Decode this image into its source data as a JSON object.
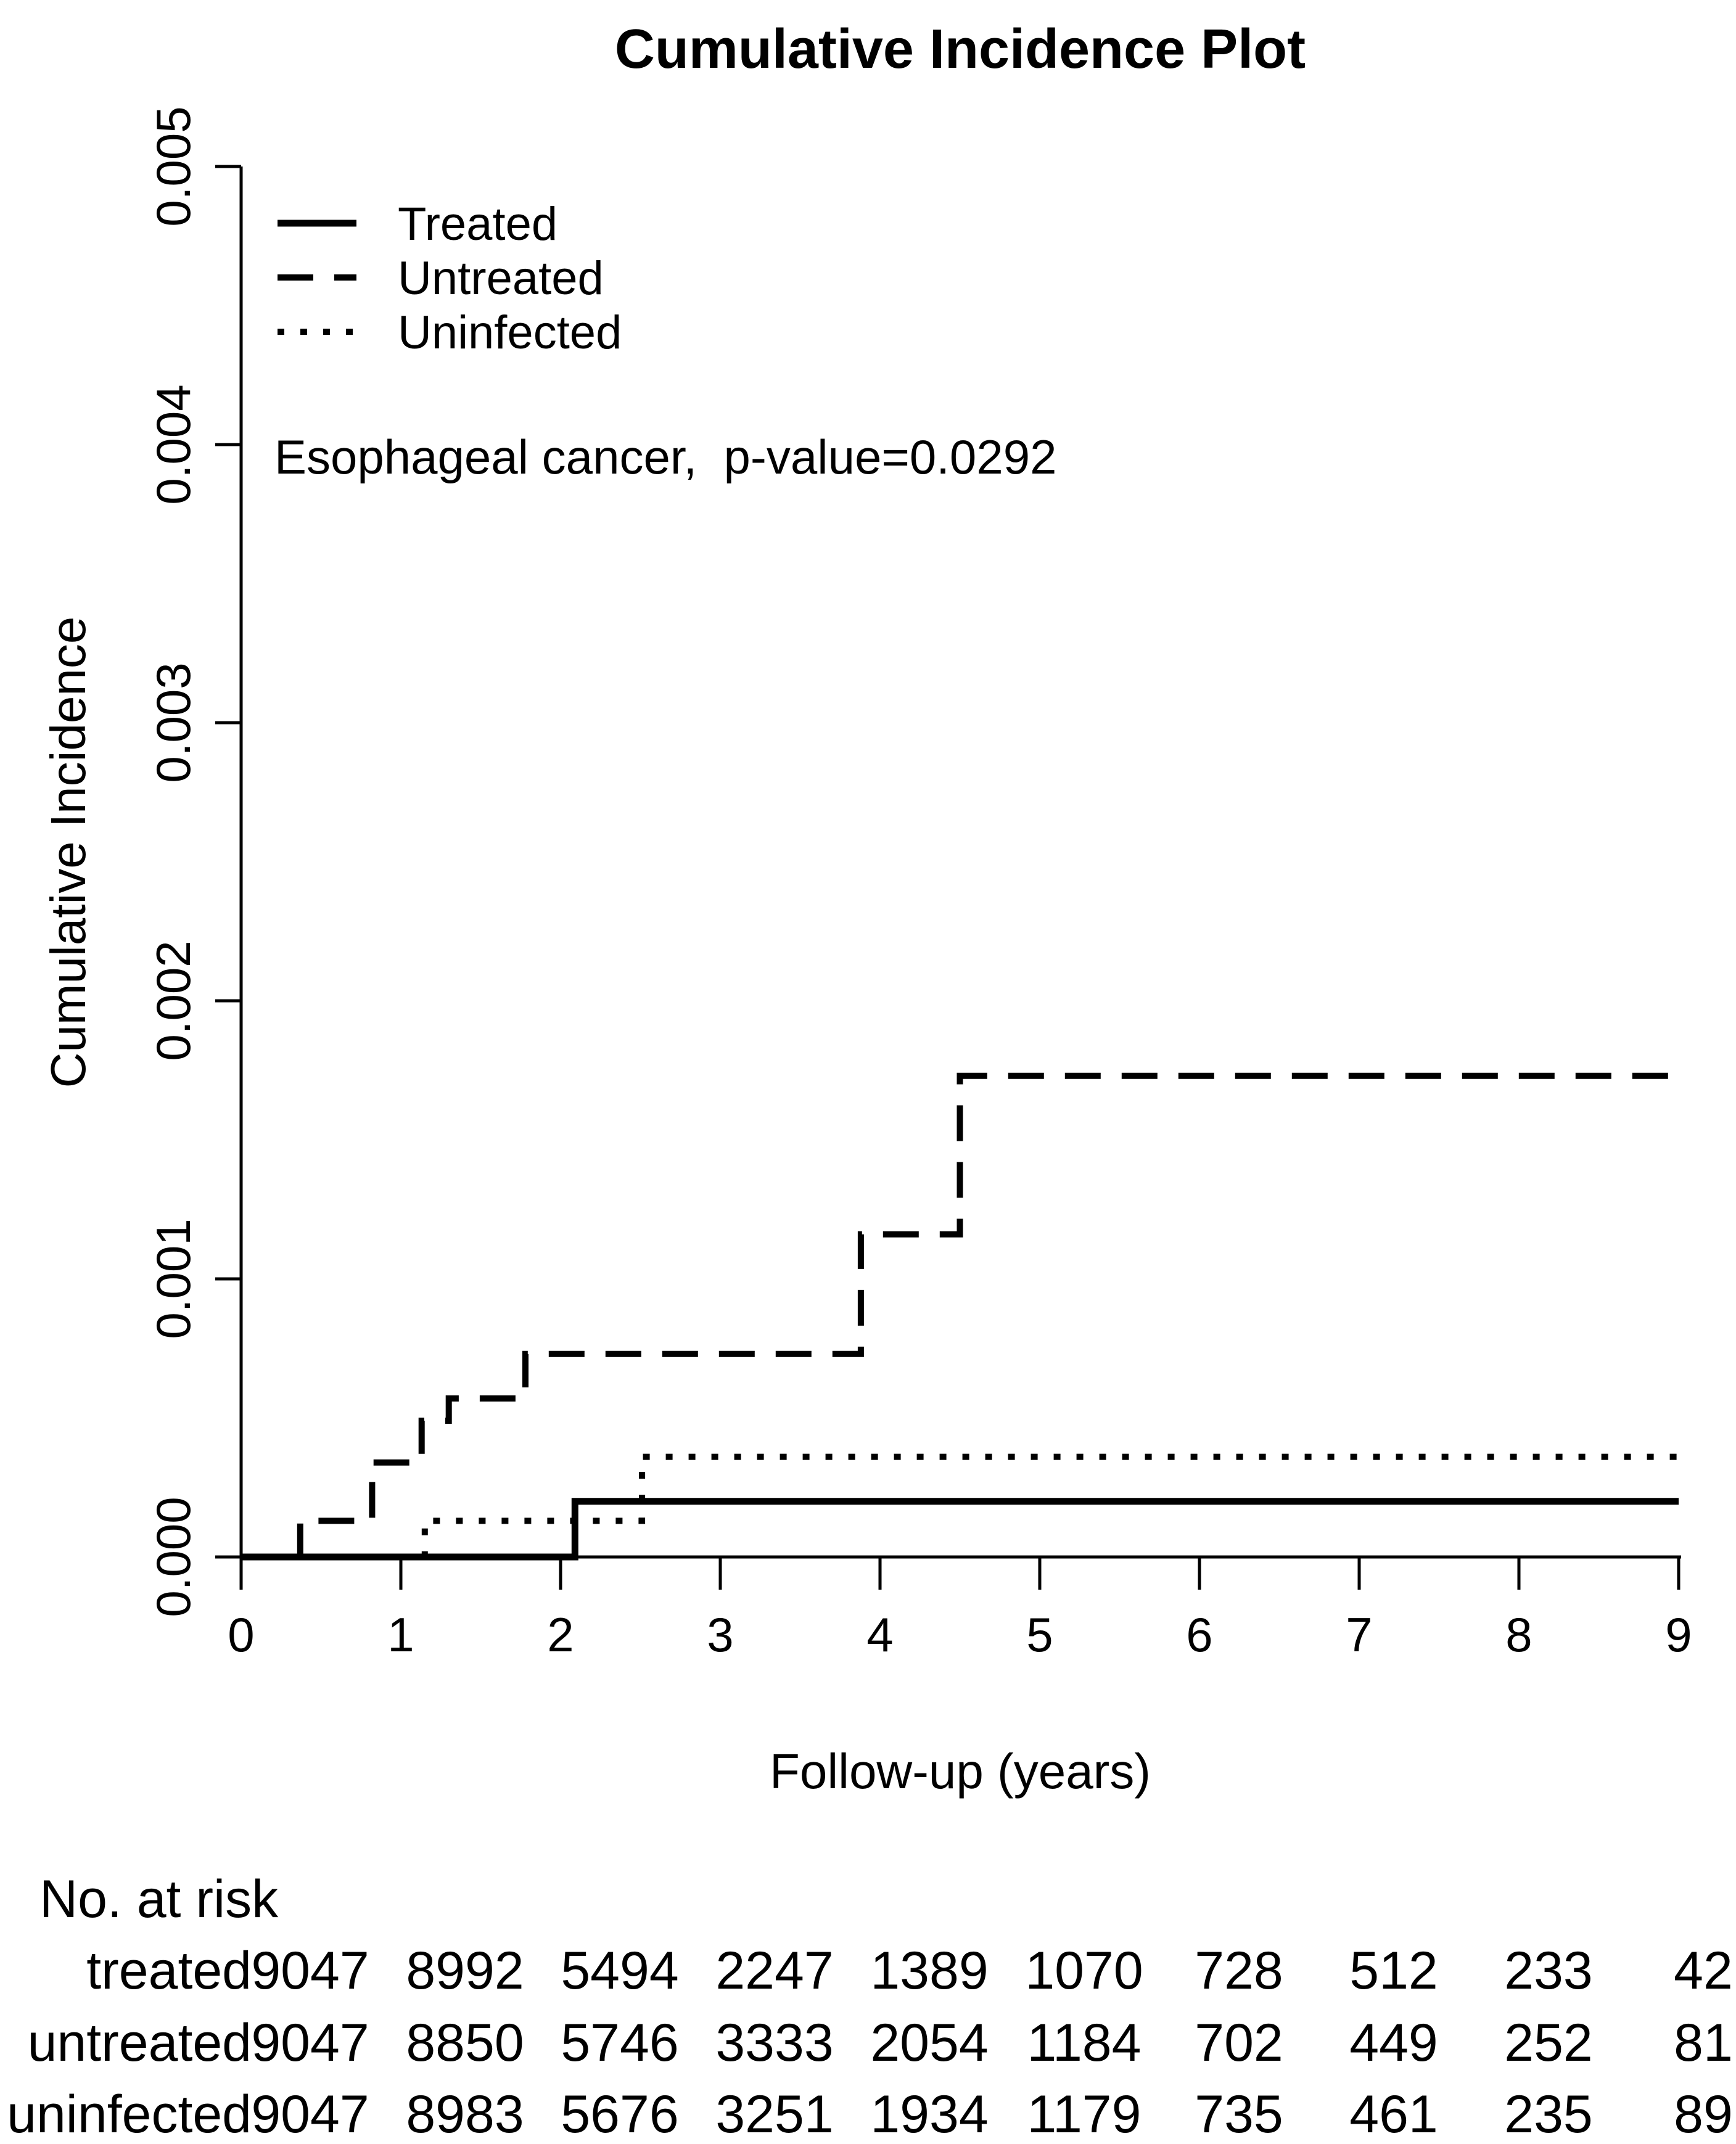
{
  "page": {
    "background": "#ffffff",
    "text_color": "#000000",
    "line_color": "#000000"
  },
  "chart_data": {
    "type": "line",
    "step": true,
    "title": "Cumulative Incidence Plot",
    "xlabel": "Follow-up (years)",
    "ylabel": "Cumulative Incidence",
    "xlim": [
      0,
      9
    ],
    "ylim": [
      0,
      0.005
    ],
    "x_ticks": [
      "0",
      "1",
      "2",
      "3",
      "4",
      "5",
      "6",
      "7",
      "8",
      "9"
    ],
    "y_ticks": [
      "0.000",
      "0.001",
      "0.002",
      "0.003",
      "0.004",
      "0.005"
    ],
    "grid": false,
    "legend_position": "upper-left",
    "annotation": "Esophageal cancer,  p-value=0.0292",
    "series": [
      {
        "name": "Treated",
        "linestyle": "solid",
        "points": [
          [
            0,
            0
          ],
          [
            2.09,
            0
          ],
          [
            2.09,
            0.0002
          ],
          [
            9,
            0.0002
          ]
        ]
      },
      {
        "name": "Untreated",
        "linestyle": "dashed",
        "points": [
          [
            0,
            0
          ],
          [
            0.37,
            0
          ],
          [
            0.37,
            0.00013
          ],
          [
            0.82,
            0.00013
          ],
          [
            0.82,
            0.00034
          ],
          [
            1.13,
            0.00034
          ],
          [
            1.13,
            0.00049
          ],
          [
            1.3,
            0.00049
          ],
          [
            1.3,
            0.00057
          ],
          [
            1.78,
            0.00057
          ],
          [
            1.78,
            0.00073
          ],
          [
            3.88,
            0.00073
          ],
          [
            3.88,
            0.00116
          ],
          [
            4.5,
            0.00116
          ],
          [
            4.5,
            0.00173
          ],
          [
            9,
            0.00173
          ]
        ]
      },
      {
        "name": "Uninfected",
        "linestyle": "dotted",
        "points": [
          [
            0,
            0
          ],
          [
            1.15,
            0
          ],
          [
            1.15,
            0.00013
          ],
          [
            2.51,
            0.00013
          ],
          [
            2.51,
            0.00036
          ],
          [
            9,
            0.00036
          ]
        ]
      }
    ]
  },
  "legend": {
    "items": [
      {
        "label": "Treated",
        "linestyle": "solid"
      },
      {
        "label": "Untreated",
        "linestyle": "dashed"
      },
      {
        "label": "Uninfected",
        "linestyle": "dotted"
      }
    ]
  },
  "risk_table": {
    "title": "No. at risk",
    "rows": [
      {
        "label": "treated",
        "counts": [
          "9047",
          "8992",
          "5494",
          "2247",
          "1389",
          "1070",
          "728",
          "512",
          "233",
          "42"
        ]
      },
      {
        "label": "untreated",
        "counts": [
          "9047",
          "8850",
          "5746",
          "3333",
          "2054",
          "1184",
          "702",
          "449",
          "252",
          "81"
        ]
      },
      {
        "label": "uninfected",
        "counts": [
          "9047",
          "8983",
          "5676",
          "3251",
          "1934",
          "1179",
          "735",
          "461",
          "235",
          "89"
        ]
      }
    ]
  }
}
